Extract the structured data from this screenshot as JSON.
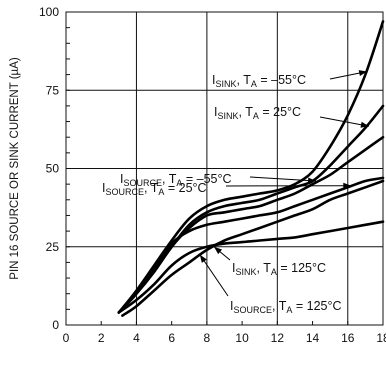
{
  "chart_data": {
    "type": "line",
    "title": "",
    "xlabel": "",
    "ylabel": "PIN 16 SOURCE OR SINK CURRENT (µA)",
    "xlim": [
      0,
      18
    ],
    "ylim": [
      0,
      100
    ],
    "x_ticks": [
      "0",
      "2",
      "4",
      "6",
      "8",
      "10",
      "12",
      "14",
      "16",
      "18"
    ],
    "y_ticks": [
      "0",
      "25",
      "50",
      "75",
      "100"
    ],
    "grid": true,
    "series": [
      {
        "label_main": "I",
        "label_sub1": "SINK",
        "label_mid": ", T",
        "label_sub2": "A",
        "label_tail": " = –55°C",
        "x": [
          3.0,
          4,
          5,
          6,
          7,
          8,
          9,
          10,
          11,
          12,
          13,
          14,
          15,
          16,
          17,
          18
        ],
        "y": [
          4,
          11,
          19,
          27,
          34,
          38,
          40,
          41,
          42,
          43,
          45,
          49,
          57,
          67,
          80,
          97
        ]
      },
      {
        "label_main": "I",
        "label_sub1": "SINK",
        "label_mid": ", T",
        "label_sub2": "A",
        "label_tail": " = 25°C",
        "x": [
          3.0,
          4,
          5,
          6,
          7,
          8,
          9,
          10,
          11,
          12,
          13,
          14,
          15,
          16,
          17,
          18
        ],
        "y": [
          4,
          10,
          17,
          25,
          32,
          36,
          38,
          39,
          40,
          42,
          44,
          46,
          51,
          57,
          63,
          70
        ]
      },
      {
        "label_main": "I",
        "label_sub1": "SOURCE",
        "label_mid": ", T",
        "label_sub2": "A",
        "label_tail": " = –55°C",
        "x": [
          3.0,
          4,
          5,
          6,
          7,
          8,
          9,
          10,
          11,
          12,
          13,
          14,
          15,
          16,
          17,
          18
        ],
        "y": [
          4,
          10,
          17,
          25,
          31,
          35,
          36,
          37,
          38,
          40,
          42,
          45,
          48,
          52,
          56,
          60
        ]
      },
      {
        "label_main": "I",
        "label_sub1": "SOURCE",
        "label_mid": ", T",
        "label_sub2": "A",
        "label_tail": " = 25°C",
        "x": [
          3.0,
          4,
          5,
          6,
          7,
          8,
          9,
          10,
          11,
          12,
          13,
          14,
          15,
          16,
          17,
          18
        ],
        "y": [
          4,
          10,
          18,
          26,
          30,
          32,
          33,
          34,
          35,
          36,
          38,
          40,
          42,
          44,
          46,
          47
        ]
      },
      {
        "label_main": "I",
        "label_sub1": "SINK",
        "label_mid": ", T",
        "label_sub2": "A",
        "label_tail": " = 125°C",
        "x": [
          3.0,
          4,
          5,
          6,
          7,
          8,
          9,
          10,
          11,
          12,
          13,
          14,
          15,
          16,
          17,
          18
        ],
        "y": [
          4,
          8,
          13,
          19,
          23,
          25,
          26,
          26.5,
          27,
          27.5,
          28,
          29,
          30,
          31,
          32,
          33
        ]
      },
      {
        "label_main": "I",
        "label_sub1": "SOURCE",
        "label_mid": ", T",
        "label_sub2": "A",
        "label_tail": " = 125°C",
        "x": [
          3.2,
          4,
          5,
          6,
          7,
          8,
          9,
          10,
          11,
          12,
          13,
          14,
          15,
          16,
          17,
          18
        ],
        "y": [
          3,
          6,
          11,
          16,
          20,
          24,
          27,
          29,
          31,
          33,
          35,
          37,
          40,
          42,
          44,
          46
        ]
      }
    ]
  }
}
